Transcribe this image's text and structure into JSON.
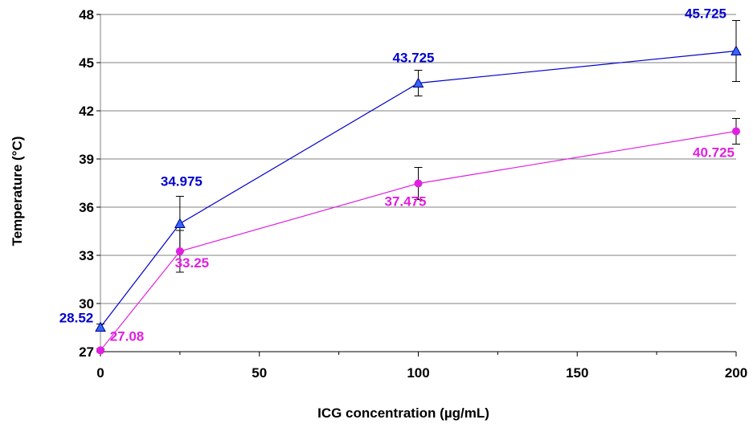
{
  "chart_data": {
    "type": "line",
    "title": "",
    "xlabel": "ICG concentration (µg/mL)",
    "ylabel": "Temperature (°C)",
    "xlim": [
      0,
      200
    ],
    "ylim": [
      27,
      48
    ],
    "xticks": [
      0,
      50,
      100,
      150,
      200
    ],
    "xtick_labels": [
      "0",
      "50",
      "100",
      "150",
      "200"
    ],
    "yticks": [
      27,
      30,
      33,
      36,
      39,
      42,
      45,
      48
    ],
    "ytick_labels": [
      "27",
      "30",
      "33",
      "36",
      "39",
      "42",
      "45",
      "48"
    ],
    "grid": "horizontal",
    "legend": "none",
    "series": [
      {
        "color": "#0000CC",
        "marker": "triangle",
        "x": [
          0,
          25,
          100,
          200
        ],
        "y": [
          28.52,
          34.975,
          43.725,
          45.725
        ],
        "err": [
          0.2,
          1.7,
          0.8,
          1.9
        ],
        "labels": [
          "28.52",
          "34.975",
          "43.725",
          "45.725"
        ]
      },
      {
        "color": "#E020E0",
        "marker": "circle",
        "x": [
          0,
          25,
          100,
          200
        ],
        "y": [
          27.08,
          33.25,
          37.475,
          40.725
        ],
        "err": [
          0.1,
          1.3,
          1.0,
          0.8
        ],
        "labels": [
          "27.08",
          "33.25",
          "37.475",
          "40.725"
        ]
      }
    ]
  }
}
